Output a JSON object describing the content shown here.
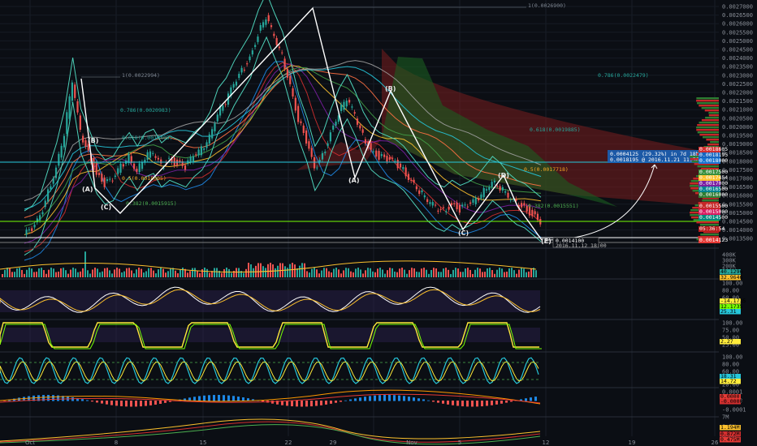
{
  "chart_data": {
    "type": "candlestick",
    "x_ticks": [
      "Oct",
      "8",
      "15",
      "22",
      "29",
      "Nov",
      "5",
      "12",
      "19",
      "26"
    ],
    "price_axis": {
      "ylim": [
        0.00135,
        0.00275
      ],
      "ticks": [
        "0.0027000",
        "0.0026500",
        "0.0026000",
        "0.0025500",
        "0.0025000",
        "0.0024500",
        "0.0024000",
        "0.0023500",
        "0.0023000",
        "0.0022500",
        "0.0022000",
        "0.0021500",
        "0.0021000",
        "0.0020500",
        "0.0020000",
        "0.0019500",
        "0.0019000",
        "0.0018500",
        "0.0018000",
        "0.0017500",
        "0.0017000",
        "0.0016500",
        "0.0016000",
        "0.0015500",
        "0.0015000",
        "0.0014500",
        "0.0014000",
        "0.0013500"
      ]
    },
    "price_path": [
      [
        0,
        0.0014
      ],
      [
        2,
        0.00143
      ],
      [
        4,
        0.0015
      ],
      [
        6,
        0.00165
      ],
      [
        8,
        0.0018
      ],
      [
        9,
        0.002
      ],
      [
        10,
        0.0023
      ],
      [
        11,
        0.002
      ],
      [
        12,
        0.00188
      ],
      [
        13,
        0.00176
      ],
      [
        14,
        0.0017
      ],
      [
        15,
        0.00172
      ],
      [
        16,
        0.0018
      ],
      [
        17,
        0.00186
      ],
      [
        18,
        0.00178
      ],
      [
        19,
        0.00186
      ],
      [
        20,
        0.00188
      ],
      [
        21,
        0.0018
      ],
      [
        22,
        0.00184
      ],
      [
        23,
        0.00182
      ],
      [
        24,
        0.0018
      ],
      [
        25,
        0.00186
      ],
      [
        26,
        0.0019
      ],
      [
        27,
        0.00198
      ],
      [
        28,
        0.00212
      ],
      [
        29,
        0.00218
      ],
      [
        30,
        0.00228
      ],
      [
        31,
        0.00236
      ],
      [
        32,
        0.00244
      ],
      [
        33,
        0.00258
      ],
      [
        34,
        0.00268
      ],
      [
        35,
        0.00256
      ],
      [
        36,
        0.00245
      ],
      [
        37,
        0.00228
      ],
      [
        38,
        0.00208
      ],
      [
        39,
        0.00195
      ],
      [
        40,
        0.00178
      ],
      [
        41,
        0.00186
      ],
      [
        42,
        0.002
      ],
      [
        43,
        0.00212
      ],
      [
        44,
        0.0022
      ],
      [
        45,
        0.0021
      ],
      [
        46,
        0.00198
      ],
      [
        47,
        0.0019
      ],
      [
        48,
        0.00186
      ],
      [
        49,
        0.00184
      ],
      [
        50,
        0.00182
      ],
      [
        51,
        0.00178
      ],
      [
        52,
        0.00172
      ],
      [
        53,
        0.00166
      ],
      [
        54,
        0.0016
      ],
      [
        55,
        0.00156
      ],
      [
        56,
        0.00154
      ],
      [
        57,
        0.00158
      ],
      [
        58,
        0.00155
      ],
      [
        59,
        0.00157
      ],
      [
        60,
        0.0016
      ],
      [
        61,
        0.00166
      ],
      [
        62,
        0.00172
      ],
      [
        63,
        0.00168
      ],
      [
        64,
        0.00162
      ],
      [
        65,
        0.00158
      ],
      [
        66,
        0.00156
      ],
      [
        67,
        0.00152
      ],
      [
        68,
        0.00148
      ]
    ],
    "wave_points": [
      {
        "label": "(A)",
        "idx": 8.5,
        "price": 0.00166
      },
      {
        "label": "(B)",
        "idx": 9.5,
        "price": 0.0019
      },
      {
        "label": "(C)",
        "idx": 11.5,
        "price": 0.00163
      },
      {
        "label": "(A)",
        "idx": 40.5,
        "price": 0.00171
      },
      {
        "label": "(B)",
        "idx": 44.5,
        "price": 0.00212
      },
      {
        "label": "(C)",
        "idx": 55.5,
        "price": 0.00151
      },
      {
        "label": "(D)",
        "idx": 60.5,
        "price": 0.00175
      },
      {
        "label": "(E)",
        "idx": 66,
        "price": 0.00143
      }
    ],
    "fib_levels": [
      {
        "label": "1(0.0026900)",
        "price": 0.00273,
        "color": "#7d8590"
      },
      {
        "label": "1(0.0022994)",
        "price": 0.00231,
        "color": "#7d8590"
      },
      {
        "label": "0.786(0.0022479)",
        "price": 0.0023,
        "color": "#26a69a"
      },
      {
        "label": "0.786(0.0020983)",
        "price": 0.00209,
        "color": "#26a69a"
      },
      {
        "label": "0.618(0.0019885)",
        "price": 0.002,
        "color": "#26a69a"
      },
      {
        "label": "0.618(0.0019405)",
        "price": 0.00195,
        "color": "#26a69a"
      },
      {
        "label": "0.5(0.0017718)",
        "price": 0.00177,
        "color": "#f5a623"
      },
      {
        "label": "0.5(0.0018005)",
        "price": 0.00178,
        "color": "#f5a623"
      },
      {
        "label": "0.382(0.0015551)",
        "price": 0.00156,
        "color": "#4caf50"
      },
      {
        "label": "0.382(0.0015915)",
        "price": 0.00159,
        "color": "#4caf50"
      }
    ],
    "callout": {
      "line1": "0.0004125 (29.32%) in 7d 18h",
      "line2": "0.0018195 @ 2016.11.21 11:56"
    },
    "marker_label": {
      "line1": "0.0014100",
      "line2": "2016.11.12 18:00"
    },
    "right_tags": [
      {
        "text": "0.0018605",
        "color": "#d32f2f",
        "price": 0.00187
      },
      {
        "text": "0.0018195",
        "color": "#1565c0",
        "price": 0.00184
      },
      {
        "text": "0.0018000",
        "color": "#1976d2",
        "price": 0.00181
      },
      {
        "text": "0.0017500",
        "color": "#388e3c",
        "price": 0.00176
      },
      {
        "text": "0.0017454",
        "color": "#fbc02d",
        "price": 0.00174
      },
      {
        "text": "0.0017000",
        "color": "#7b1fa2",
        "price": 0.00169
      },
      {
        "text": "0.0016500",
        "color": "#00838f",
        "price": 0.00166
      },
      {
        "text": "0.0016000",
        "color": "#2e7d32",
        "price": 0.00161
      },
      {
        "text": "0.0015500",
        "color": "#c62828",
        "price": 0.00156
      },
      {
        "text": "0.0015000",
        "color": "#d81b60",
        "price": 0.00152
      },
      {
        "text": "0.0014500",
        "color": "#00897b",
        "price": 0.00147
      },
      {
        "text": "0.0014123",
        "color": "#e53935",
        "price": 0.00141
      },
      {
        "text": "05:36:54",
        "color": "#b71c1c",
        "price": 0.00144
      }
    ],
    "panels": {
      "volume": {
        "ticks": [
          "400K",
          "300K",
          "200K",
          "100K"
        ]
      },
      "rsi": {
        "ticks": [
          "100.00",
          "80.00",
          "60.00",
          "40.00",
          "20.00"
        ]
      },
      "stoch": {
        "ticks": [
          "100.00",
          "75.00",
          "50.00",
          "25.00"
        ]
      },
      "stochrsi": {
        "ticks": [
          "100.00",
          "80.00",
          "60.00",
          "40.00",
          "20.00"
        ]
      },
      "macd": {
        "ticks": [
          "0.0001",
          "0.0000",
          "-0.0001"
        ]
      },
      "obv": {
        "ticks": [
          "7M",
          "0.5M",
          "0.0M"
        ]
      }
    },
    "panel_tags": [
      {
        "text": "40.1296",
        "color": "#26a69a",
        "y": 337
      },
      {
        "text": "32.9646",
        "color": "#fbc02d",
        "y": 344
      },
      {
        "text": "-14.1735",
        "color": "#ffeb3b",
        "y": 373
      },
      {
        "text": "12.1735",
        "color": "#76ff03",
        "y": 380
      },
      {
        "text": "25.31",
        "color": "#26c6da",
        "y": 386
      },
      {
        "text": "2.27",
        "color": "#ffeb3b",
        "y": 423
      },
      {
        "text": "18.31",
        "color": "#26c6da",
        "y": 466
      },
      {
        "text": "14.72",
        "color": "#ffeb3b",
        "y": 472
      },
      {
        "text": "0.0000",
        "color": "#e53935",
        "y": 491
      },
      {
        "text": "-0.0000",
        "color": "#d32f2f",
        "y": 497
      },
      {
        "text": "1.194M",
        "color": "#fbc02d",
        "y": 529
      },
      {
        "text": "0.872M",
        "color": "#d32f2f",
        "y": 537
      },
      {
        "text": "0.475M",
        "color": "#e53935",
        "y": 544
      }
    ],
    "colors": {
      "up": "#26a69a",
      "down": "#ef5350",
      "bg": "#0b0e14",
      "cloud_red": "#7a1e1e",
      "cloud_green": "#1b5e20",
      "wave": "#ffffff"
    },
    "grid": true
  }
}
